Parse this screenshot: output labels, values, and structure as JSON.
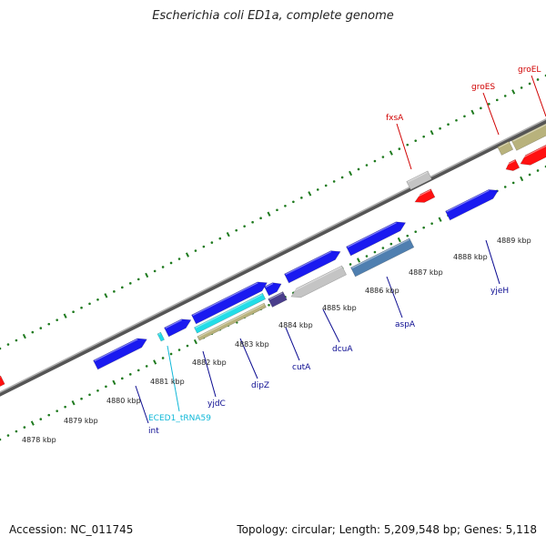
{
  "title": "Escherichia coli ED1a, complete genome",
  "footer": {
    "accession": "Accession: NC_011745",
    "stats": "Topology: circular; Length: 5,209,548 bp; Genes: 5,118"
  },
  "colors": {
    "forward_gene": "#1a1af0",
    "trna": "#22dde8",
    "pseudo_grey": "#c4c4c4",
    "olive": "#b8b27c",
    "red": "#ff1010",
    "steel": "#4f7fb0",
    "navy": "#4a3e8c",
    "label_blue": "#0a0a90",
    "label_red": "#d00000",
    "label_cyan": "#10b8d8",
    "tick": "#1e7a1e",
    "backbone": "#7a7a7a"
  },
  "ticks": [
    {
      "label": "4878 kbp"
    },
    {
      "label": "4879 kbp"
    },
    {
      "label": "4880 kbp"
    },
    {
      "label": "4881 kbp"
    },
    {
      "label": "4882 kbp"
    },
    {
      "label": "4883 kbp"
    },
    {
      "label": "4884 kbp"
    },
    {
      "label": "4885 kbp"
    },
    {
      "label": "4886 kbp"
    },
    {
      "label": "4887 kbp"
    },
    {
      "label": "4888 kbp"
    },
    {
      "label": "4889 kbp"
    }
  ],
  "gene_labels": [
    {
      "name": "int",
      "color": "label_blue"
    },
    {
      "name": "ECED1_tRNA59",
      "color": "label_cyan"
    },
    {
      "name": "yjdC",
      "color": "label_blue"
    },
    {
      "name": "dipZ",
      "color": "label_blue"
    },
    {
      "name": "cutA",
      "color": "label_blue"
    },
    {
      "name": "dcuA",
      "color": "label_blue"
    },
    {
      "name": "aspA",
      "color": "label_blue"
    },
    {
      "name": "yjeH",
      "color": "label_blue"
    },
    {
      "name": "fxsA",
      "color": "label_red"
    },
    {
      "name": "groES",
      "color": "label_red"
    },
    {
      "name": "groEL",
      "color": "label_red"
    }
  ]
}
